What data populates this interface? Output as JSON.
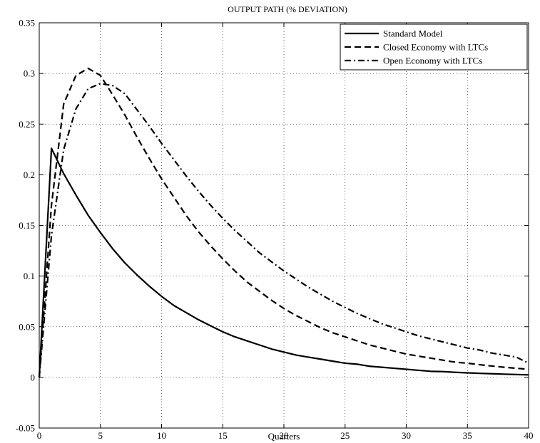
{
  "chart_data": {
    "type": "line",
    "title": "OUTPUT PATH (% DEVIATION)",
    "xlabel": "Quarters",
    "ylabel": "",
    "xlim": [
      0,
      40
    ],
    "ylim": [
      -0.05,
      0.35
    ],
    "xticks": [
      0,
      5,
      10,
      15,
      20,
      25,
      30,
      35,
      40
    ],
    "yticks": [
      -0.05,
      0,
      0.05,
      0.1,
      0.15,
      0.2,
      0.25,
      0.3,
      0.35
    ],
    "xtick_labels": [
      "0",
      "5",
      "10",
      "15",
      "20",
      "25",
      "30",
      "35",
      "40"
    ],
    "ytick_labels": [
      "-0.05",
      "0",
      "0.05",
      "0.1",
      "0.15",
      "0.2",
      "0.25",
      "0.3",
      "0.35"
    ],
    "grid": true,
    "legend_position": "top-right",
    "x": [
      0,
      1,
      2,
      3,
      4,
      5,
      6,
      7,
      8,
      9,
      10,
      11,
      12,
      13,
      14,
      15,
      16,
      17,
      18,
      19,
      20,
      21,
      22,
      23,
      24,
      25,
      26,
      27,
      28,
      29,
      30,
      31,
      32,
      33,
      34,
      35,
      36,
      37,
      38,
      39,
      40
    ],
    "series": [
      {
        "name": "Standard Model",
        "style": "solid",
        "color": "#000000",
        "values": [
          0,
          0.226,
          0.201,
          0.18,
          0.16,
          0.143,
          0.127,
          0.113,
          0.101,
          0.09,
          0.08,
          0.071,
          0.064,
          0.057,
          0.051,
          0.045,
          0.04,
          0.036,
          0.032,
          0.028,
          0.025,
          0.022,
          0.02,
          0.018,
          0.016,
          0.014,
          0.013,
          0.011,
          0.01,
          0.009,
          0.008,
          0.007,
          0.006,
          0.0057,
          0.005,
          0.0045,
          0.004,
          0.0036,
          0.0032,
          0.0028,
          0.0025
        ]
      },
      {
        "name": "Closed Economy with LTCs",
        "style": "dashed",
        "color": "#000000",
        "values": [
          0,
          0.17,
          0.27,
          0.298,
          0.305,
          0.298,
          0.279,
          0.259,
          0.237,
          0.216,
          0.196,
          0.178,
          0.16,
          0.144,
          0.13,
          0.117,
          0.105,
          0.094,
          0.085,
          0.076,
          0.068,
          0.061,
          0.055,
          0.049,
          0.044,
          0.04,
          0.036,
          0.032,
          0.029,
          0.026,
          0.023,
          0.021,
          0.019,
          0.017,
          0.015,
          0.014,
          0.0125,
          0.0112,
          0.01,
          0.009,
          0.008
        ]
      },
      {
        "name": "Open Economy with LTCs",
        "style": "dashdot",
        "color": "#000000",
        "values": [
          0,
          0.14,
          0.225,
          0.265,
          0.285,
          0.29,
          0.288,
          0.28,
          0.264,
          0.248,
          0.231,
          0.215,
          0.199,
          0.184,
          0.17,
          0.157,
          0.145,
          0.134,
          0.123,
          0.114,
          0.105,
          0.097,
          0.089,
          0.082,
          0.075,
          0.069,
          0.063,
          0.058,
          0.053,
          0.049,
          0.045,
          0.041,
          0.038,
          0.035,
          0.032,
          0.029,
          0.027,
          0.024,
          0.022,
          0.02,
          0.014
        ]
      }
    ]
  }
}
